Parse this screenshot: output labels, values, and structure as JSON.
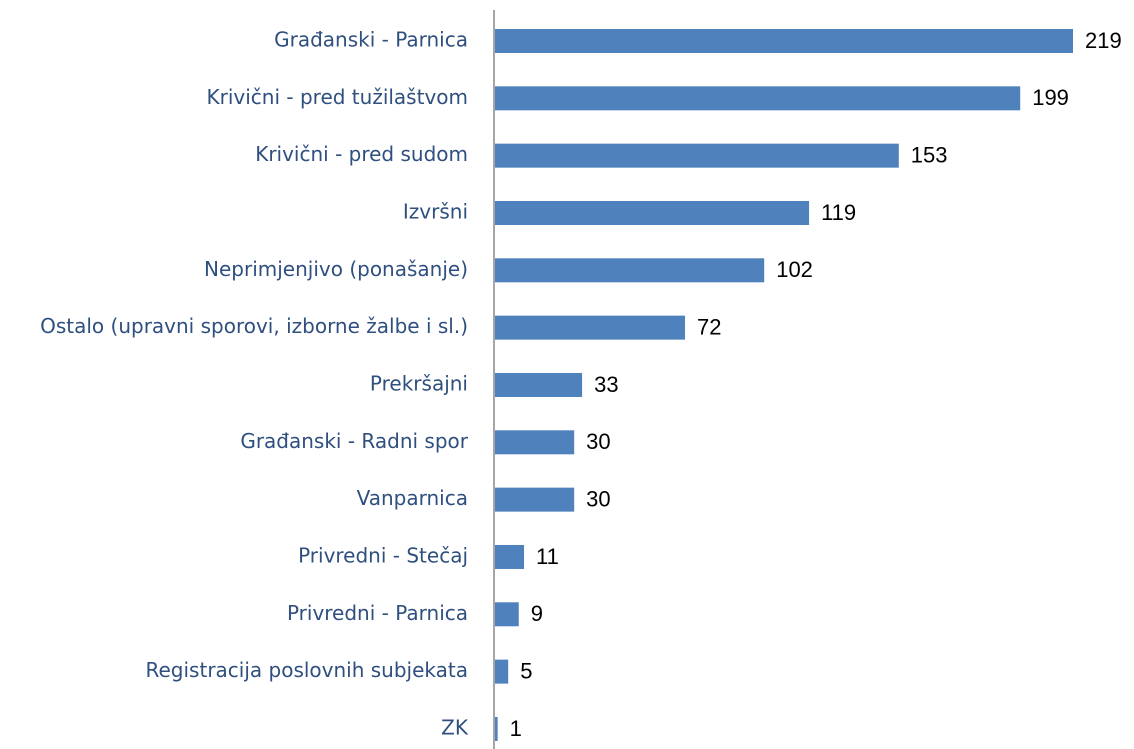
{
  "chart_data": {
    "type": "bar",
    "orientation": "horizontal",
    "categories": [
      "Građanski - Parnica",
      "Krivični - pred tužilaštvom",
      "Krivični - pred sudom",
      "Izvršni",
      "Neprimjenjivo (ponašanje)",
      "Ostalo (upravni sporovi, izborne žalbe i sl.)",
      "Prekršajni",
      "Građanski - Radni spor",
      "Vanparnica",
      "Privredni - Stečaj",
      "Privredni - Parnica",
      "Registracija poslovnih subjekata",
      "ZK"
    ],
    "values": [
      219,
      199,
      153,
      119,
      102,
      72,
      33,
      30,
      30,
      11,
      9,
      5,
      1
    ],
    "color": "#4f81bd"
  }
}
